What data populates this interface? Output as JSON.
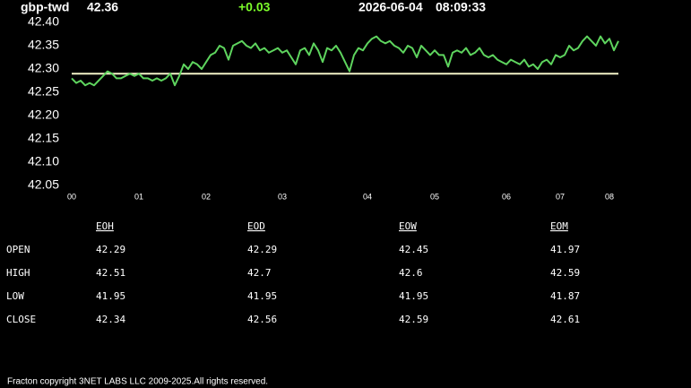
{
  "header": {
    "symbol": "gbp-twd",
    "price": "42.36",
    "change": "+0.03",
    "date": "2026-06-04",
    "time": "08:09:33"
  },
  "chart_data": {
    "type": "line",
    "values": [
      42.28,
      42.27,
      42.275,
      42.265,
      42.27,
      42.265,
      42.275,
      42.285,
      42.295,
      42.29,
      42.28,
      42.28,
      42.285,
      42.29,
      42.285,
      42.29,
      42.28,
      42.28,
      42.275,
      42.28,
      42.275,
      42.28,
      42.29,
      42.265,
      42.285,
      42.31,
      42.3,
      42.315,
      42.31,
      42.3,
      42.315,
      42.33,
      42.335,
      42.35,
      42.345,
      42.32,
      42.35,
      42.355,
      42.36,
      42.35,
      42.345,
      42.355,
      42.34,
      42.345,
      42.335,
      42.34,
      42.345,
      42.335,
      42.34,
      42.325,
      42.31,
      42.34,
      42.345,
      42.33,
      42.355,
      42.34,
      42.315,
      42.345,
      42.34,
      42.35,
      42.335,
      42.315,
      42.295,
      42.33,
      42.345,
      42.34,
      42.355,
      42.365,
      42.37,
      42.36,
      42.355,
      42.36,
      42.35,
      42.345,
      42.335,
      42.35,
      42.345,
      42.325,
      42.35,
      42.34,
      42.33,
      42.34,
      42.33,
      42.33,
      42.305,
      42.335,
      42.34,
      42.335,
      42.345,
      42.33,
      42.335,
      42.345,
      42.33,
      42.325,
      42.33,
      42.32,
      42.315,
      42.31,
      42.32,
      42.315,
      42.31,
      42.32,
      42.305,
      42.31,
      42.3,
      42.315,
      42.32,
      42.31,
      42.33,
      42.325,
      42.33,
      42.35,
      42.34,
      42.345,
      42.36,
      42.37,
      42.36,
      42.35,
      42.37,
      42.355,
      42.365,
      42.34,
      42.36
    ],
    "color": "#5ed45e",
    "baseline": 42.29,
    "baseline_color": "#f2f2c8",
    "xlim": [
      0,
      122
    ],
    "xticks": [
      {
        "value": 0,
        "label": "00"
      },
      {
        "value": 15,
        "label": "01"
      },
      {
        "value": 30,
        "label": "02"
      },
      {
        "value": 47,
        "label": "03"
      },
      {
        "value": 66,
        "label": "04"
      },
      {
        "value": 81,
        "label": "05"
      },
      {
        "value": 97,
        "label": "06"
      },
      {
        "value": 109,
        "label": "07"
      },
      {
        "value": 120,
        "label": "08"
      }
    ],
    "ylim": [
      42.05,
      42.4
    ],
    "yticks": [
      42.05,
      {
        "value": 42.1,
        "label": "42.10"
      },
      42.15,
      {
        "value": 42.2,
        "label": "42.20"
      },
      42.25,
      {
        "value": 42.3,
        "label": "42.30"
      },
      42.35,
      {
        "value": 42.4,
        "label": "42.40"
      }
    ]
  },
  "table": {
    "columns": [
      "EOH",
      "EOD",
      "EOW",
      "EOM"
    ],
    "rows": [
      {
        "label": "OPEN",
        "cells": [
          42.29,
          42.29,
          42.45,
          41.97
        ]
      },
      {
        "label": "HIGH",
        "cells": [
          42.51,
          42.7,
          42.6,
          42.59
        ]
      },
      {
        "label": "LOW",
        "cells": [
          41.95,
          41.95,
          41.95,
          41.87
        ]
      },
      {
        "label": "CLOSE",
        "cells": [
          42.34,
          42.56,
          42.59,
          42.61
        ]
      }
    ]
  },
  "footer": "Fracton copyright 3NET LABS LLC 2009-2025.All rights reserved."
}
